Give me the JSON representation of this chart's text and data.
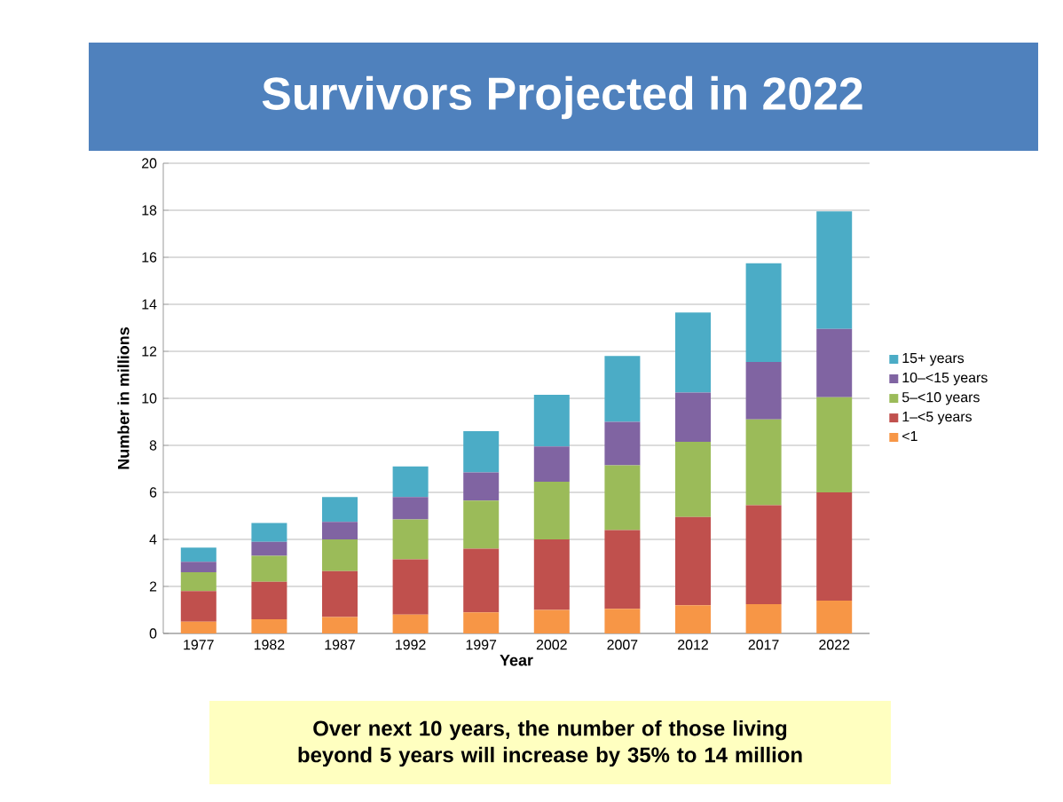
{
  "chart_data": {
    "type": "bar",
    "title": "Survivors Projected in 2022",
    "xlabel": "Year",
    "ylabel": "Number in millions",
    "annotations": [
      "Over next 10 years, the number of those living beyond 5 years will increase by 35% to 14 million"
    ],
    "categories": [
      "1977",
      "1982",
      "1987",
      "1992",
      "1997",
      "2002",
      "2007",
      "2012",
      "2017",
      "2022"
    ],
    "stacked": true,
    "ylim": [
      0,
      20
    ],
    "yticks": [
      0,
      2,
      4,
      6,
      8,
      10,
      12,
      14,
      16,
      18,
      20
    ],
    "grid": "y",
    "legend": "right",
    "series": [
      {
        "name": "<1",
        "color": "#f79646",
        "values": [
          0.5,
          0.6,
          0.7,
          0.8,
          0.9,
          1.0,
          1.05,
          1.2,
          1.25,
          1.4
        ]
      },
      {
        "name": "1–<5 years",
        "color": "#c0504d",
        "values": [
          1.3,
          1.6,
          1.95,
          2.35,
          2.7,
          3.0,
          3.35,
          3.75,
          4.2,
          4.6
        ]
      },
      {
        "name": "5–<10 years",
        "color": "#9bbb59",
        "values": [
          0.8,
          1.1,
          1.35,
          1.7,
          2.05,
          2.45,
          2.75,
          3.2,
          3.65,
          4.05
        ]
      },
      {
        "name": "10–<15 years",
        "color": "#8064a2",
        "values": [
          0.45,
          0.6,
          0.75,
          0.95,
          1.2,
          1.5,
          1.85,
          2.1,
          2.45,
          2.9
        ]
      },
      {
        "name": "15+ years",
        "color": "#4bacc6",
        "values": [
          0.6,
          0.8,
          1.05,
          1.3,
          1.75,
          2.2,
          2.8,
          3.4,
          4.2,
          5.0
        ]
      }
    ]
  }
}
